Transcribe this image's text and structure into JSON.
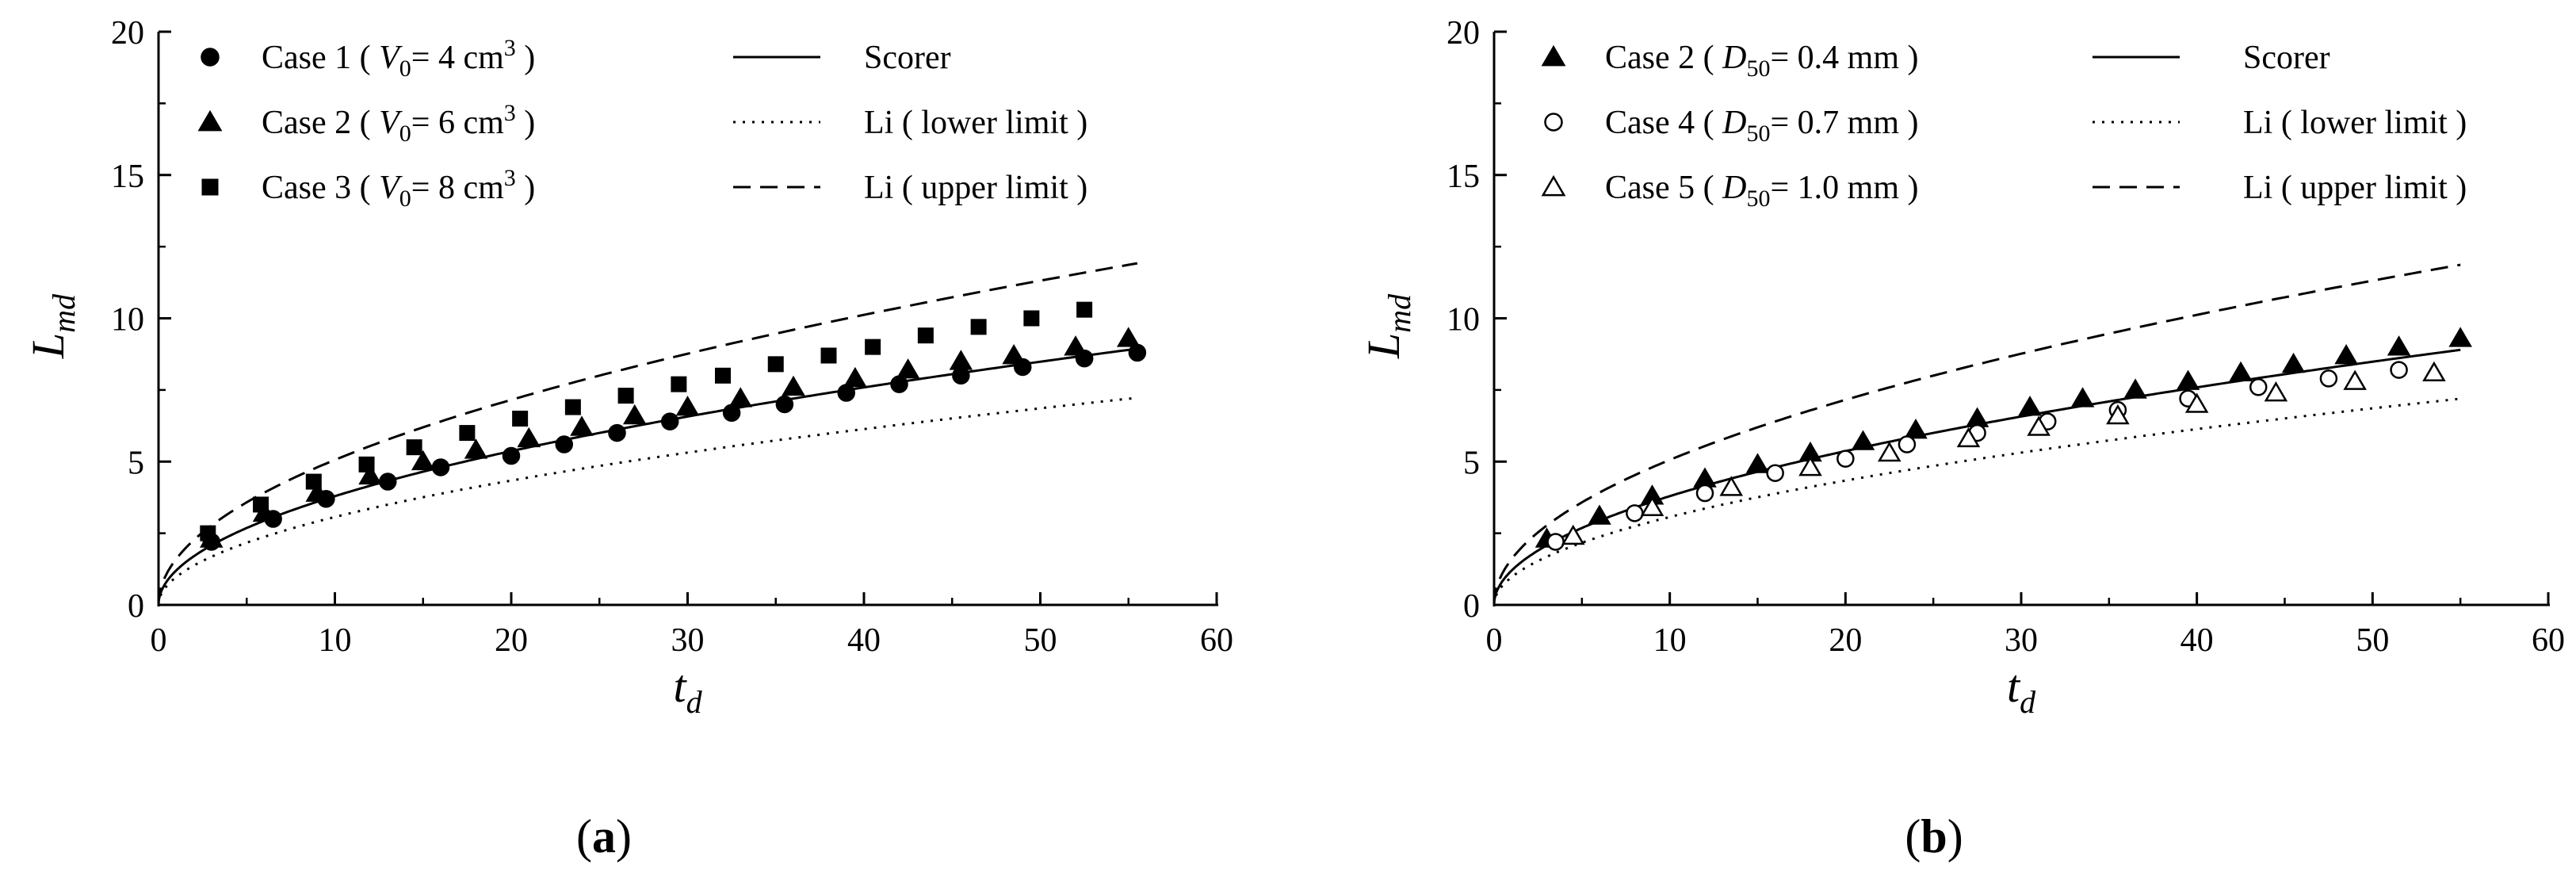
{
  "chart_data": [
    {
      "type": "scatter",
      "panel_label_prefix": "(",
      "panel_label_letter": "a",
      "panel_label_suffix": ")",
      "xlabel_base": "t",
      "xlabel_sub": "d",
      "ylabel_base": "L",
      "ylabel_sub": "md",
      "xlim": [
        0,
        60
      ],
      "ylim": [
        0,
        20
      ],
      "xticks": [
        "0",
        "10",
        "20",
        "30",
        "40",
        "50",
        "60"
      ],
      "yticks": [
        "0",
        "5",
        "10",
        "15",
        "20"
      ],
      "grid": false,
      "legend_position": "top",
      "series": [
        {
          "name_prefix": "Case 1  ( ",
          "name_var": "V",
          "name_var_sub": "0",
          "name_mid": "=  4 cm",
          "name_sup": "3",
          "name_suffix": " )",
          "marker": "filled-circle",
          "x": [
            3.0,
            6.5,
            9.5,
            13.0,
            16.0,
            20.0,
            23.0,
            26.0,
            29.0,
            32.5,
            35.5,
            39.0,
            42.0,
            45.5,
            49.0,
            52.5,
            55.5
          ],
          "y": [
            2.2,
            3.0,
            3.7,
            4.3,
            4.8,
            5.2,
            5.6,
            6.0,
            6.4,
            6.7,
            7.0,
            7.4,
            7.7,
            8.0,
            8.3,
            8.6,
            8.8
          ]
        },
        {
          "name_prefix": "Case 2  ( ",
          "name_var": "V",
          "name_var_sub": "0",
          "name_mid": "=  6 cm",
          "name_sup": "3",
          "name_suffix": " )",
          "marker": "filled-triangle",
          "x": [
            3.0,
            6.0,
            9.0,
            12.0,
            15.0,
            18.0,
            21.0,
            24.0,
            27.0,
            30.0,
            33.0,
            36.0,
            39.5,
            42.5,
            45.5,
            48.5,
            52.0,
            55.0
          ],
          "y": [
            2.3,
            3.2,
            3.9,
            4.5,
            5.0,
            5.4,
            5.8,
            6.2,
            6.6,
            6.9,
            7.2,
            7.6,
            7.9,
            8.2,
            8.5,
            8.7,
            9.0,
            9.3
          ]
        },
        {
          "name_prefix": "Case 3  ( ",
          "name_var": "V",
          "name_var_sub": "0",
          "name_mid": "=  8 cm",
          "name_sup": "3",
          "name_suffix": " )",
          "marker": "filled-square",
          "x": [
            2.8,
            5.8,
            8.8,
            11.8,
            14.5,
            17.5,
            20.5,
            23.5,
            26.5,
            29.5,
            32.0,
            35.0,
            38.0,
            40.5,
            43.5,
            46.5,
            49.5,
            52.5
          ],
          "y": [
            2.5,
            3.5,
            4.3,
            4.9,
            5.5,
            6.0,
            6.5,
            6.9,
            7.3,
            7.7,
            8.0,
            8.4,
            8.7,
            9.0,
            9.4,
            9.7,
            10.0,
            10.3
          ]
        }
      ],
      "lines": [
        {
          "name": "Scorer",
          "style": "solid",
          "coef": 1.2,
          "xmax": 55.5
        },
        {
          "name": "Li ( lower limit )",
          "style": "dotted",
          "coef": 0.97,
          "xmax": 55.5
        },
        {
          "name": "Li ( upper limit )",
          "style": "dashed",
          "coef": 1.6,
          "xmax": 55.5
        }
      ]
    },
    {
      "type": "scatter",
      "panel_label_prefix": "(",
      "panel_label_letter": "b",
      "panel_label_suffix": ")",
      "xlabel_base": "t",
      "xlabel_sub": "d",
      "ylabel_base": "L",
      "ylabel_sub": "md",
      "xlim": [
        0,
        60
      ],
      "ylim": [
        0,
        20
      ],
      "xticks": [
        "0",
        "10",
        "20",
        "30",
        "40",
        "50",
        "60"
      ],
      "yticks": [
        "0",
        "5",
        "10",
        "15",
        "20"
      ],
      "grid": false,
      "legend_position": "top",
      "series": [
        {
          "name_prefix": "Case 2  ( ",
          "name_var": "D",
          "name_var_sub": "50",
          "name_mid": "=  0.4 mm",
          "name_sup": "",
          "name_suffix": " )",
          "marker": "filled-triangle",
          "x": [
            3.0,
            6.0,
            9.0,
            12.0,
            15.0,
            18.0,
            21.0,
            24.0,
            27.5,
            30.5,
            33.5,
            36.5,
            39.5,
            42.5,
            45.5,
            48.5,
            51.5,
            55.0
          ],
          "y": [
            2.3,
            3.1,
            3.8,
            4.4,
            4.9,
            5.3,
            5.7,
            6.1,
            6.5,
            6.9,
            7.2,
            7.5,
            7.8,
            8.1,
            8.4,
            8.7,
            9.0,
            9.3
          ]
        },
        {
          "name_prefix": "Case 4  ( ",
          "name_var": "D",
          "name_var_sub": "50",
          "name_mid": "=  0.7 mm",
          "name_sup": "",
          "name_suffix": " )",
          "marker": "open-circle",
          "x": [
            3.5,
            8.0,
            12.0,
            16.0,
            20.0,
            23.5,
            27.5,
            31.5,
            35.5,
            39.5,
            43.5,
            47.5,
            51.5
          ],
          "y": [
            2.2,
            3.2,
            3.9,
            4.6,
            5.1,
            5.6,
            6.0,
            6.4,
            6.8,
            7.2,
            7.6,
            7.9,
            8.2
          ]
        },
        {
          "name_prefix": "Case 5  ( ",
          "name_var": "D",
          "name_var_sub": "50",
          "name_mid": "=  1.0 mm",
          "name_sup": "",
          "name_suffix": " )",
          "marker": "open-triangle",
          "x": [
            4.5,
            9.0,
            13.5,
            18.0,
            22.5,
            27.0,
            31.0,
            35.5,
            40.0,
            44.5,
            49.0,
            53.5
          ],
          "y": [
            2.4,
            3.4,
            4.1,
            4.8,
            5.3,
            5.8,
            6.2,
            6.6,
            7.0,
            7.4,
            7.8,
            8.1
          ]
        }
      ],
      "lines": [
        {
          "name": "Scorer",
          "style": "solid",
          "coef": 1.2,
          "xmax": 55
        },
        {
          "name": "Li ( lower limit )",
          "style": "dotted",
          "coef": 0.97,
          "xmax": 55
        },
        {
          "name": "Li ( upper limit )",
          "style": "dashed",
          "coef": 1.6,
          "xmax": 55
        }
      ]
    }
  ]
}
